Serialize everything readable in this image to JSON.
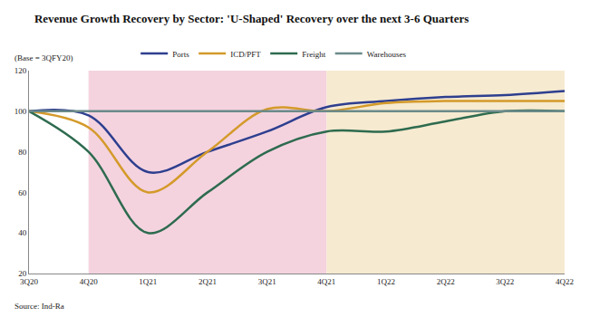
{
  "chart_data": {
    "type": "line",
    "title": "Revenue Growth Recovery by Sector: 'U-Shaped' Recovery over the next 3-6 Quarters",
    "subtitle": "(Base = 3QFY20)",
    "source": "Source: Ind-Ra",
    "categories": [
      "3Q20",
      "4Q20",
      "1Q21",
      "2Q21",
      "3Q21",
      "4Q21",
      "1Q22",
      "2Q22",
      "3Q22",
      "4Q22"
    ],
    "series": [
      {
        "name": "Ports",
        "color": "#2e3f8f",
        "values": [
          100,
          98,
          70,
          80,
          90,
          102,
          105,
          107,
          108,
          110
        ]
      },
      {
        "name": "ICD/PFT",
        "color": "#d49a2a",
        "values": [
          100,
          92,
          60,
          80,
          101,
          100,
          104,
          105,
          105,
          105
        ]
      },
      {
        "name": "Freight",
        "color": "#2e6b4f",
        "values": [
          100,
          80,
          40,
          60,
          80,
          90,
          90,
          95,
          100,
          100
        ]
      },
      {
        "name": "Warehouses",
        "color": "#6b8a8a",
        "values": [
          100,
          100,
          100,
          100,
          100,
          100,
          100,
          100,
          100,
          100
        ]
      }
    ],
    "periods": [
      {
        "start": "4Q20",
        "end": "4Q21",
        "color": "#f4d3df"
      },
      {
        "start": "4Q21",
        "end": "4Q22",
        "color": "#f6ead0"
      }
    ],
    "ylim": [
      20,
      120
    ],
    "yticks": [
      20,
      40,
      60,
      80,
      100,
      120
    ],
    "grid": false,
    "legend": "top"
  }
}
